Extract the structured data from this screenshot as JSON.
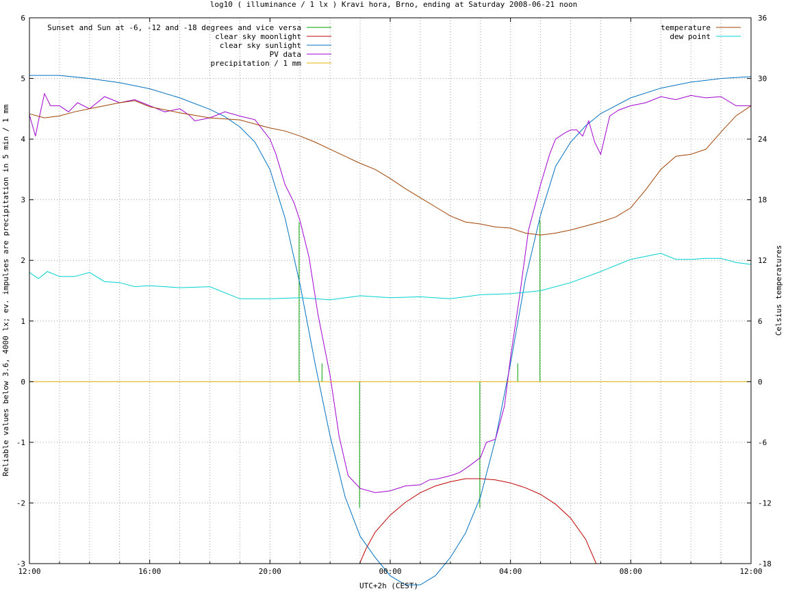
{
  "chart_data": {
    "type": "line",
    "title": "log10 ( illuminance / 1 lx ) Kravi hora, Brno, ending at Saturday 2008-06-21 noon",
    "xlabel": "UTC+2h (CEST)",
    "ylabel": "Reliable values below 3.6, 4000 lx; ev. impulses are precipitation in 5 min / 1 mm",
    "y2label": "Celsius temperatures",
    "xlim": [
      0,
      24
    ],
    "ylim": [
      -3,
      6
    ],
    "y2lim": [
      -18,
      36
    ],
    "x_ticks": [
      {
        "x": 0,
        "label": "12:00"
      },
      {
        "x": 4,
        "label": "16:00"
      },
      {
        "x": 8,
        "label": "20:00"
      },
      {
        "x": 12,
        "label": "00:00"
      },
      {
        "x": 16,
        "label": "04:00"
      },
      {
        "x": 20,
        "label": "08:00"
      },
      {
        "x": 24,
        "label": "12:00"
      }
    ],
    "y_ticks": [
      "-3",
      "-2",
      "-1",
      "0",
      "1",
      "2",
      "3",
      "4",
      "5",
      "6"
    ],
    "y2_ticks": [
      "-18",
      "-12",
      "-6",
      "0",
      "6",
      "12",
      "18",
      "24",
      "30",
      "36"
    ],
    "grid": true,
    "legend_left": "top-left",
    "legend_right": "top-right",
    "series": [
      {
        "name": "Sunset and Sun at -6, -12 and -18 degrees and vice versa",
        "color": "#00a000",
        "axis": "left",
        "kind": "impulse",
        "x": [
          8.97,
          9.73,
          10.98,
          14.98,
          16.24,
          16.98
        ],
        "values": [
          2.63,
          0.3,
          -2.08,
          -2.08,
          0.3,
          2.66
        ]
      },
      {
        "name": "clear sky moonlight",
        "color": "#c00000",
        "axis": "left",
        "x": [
          10.98,
          11.2,
          11.5,
          12.0,
          12.5,
          13.0,
          13.5,
          14.0,
          14.5,
          15.0,
          15.5,
          16.0,
          16.5,
          17.0,
          17.5,
          18.0,
          18.5,
          18.85
        ],
        "values": [
          -3.0,
          -2.75,
          -2.48,
          -2.2,
          -1.99,
          -1.83,
          -1.72,
          -1.65,
          -1.6,
          -1.6,
          -1.62,
          -1.67,
          -1.75,
          -1.86,
          -2.02,
          -2.25,
          -2.6,
          -3.0
        ]
      },
      {
        "name": "clear sky sunlight",
        "color": "#0070c0",
        "axis": "left",
        "x": [
          0,
          1,
          2,
          3,
          4,
          5,
          6,
          6.5,
          7,
          7.5,
          8,
          8.5,
          9,
          9.5,
          10,
          10.5,
          11,
          11.5,
          12,
          12.5,
          13,
          13.5,
          14,
          14.5,
          15,
          15.5,
          16,
          16.5,
          17,
          17.5,
          18,
          18.5,
          19,
          20,
          21,
          22,
          23,
          24
        ],
        "values": [
          5.05,
          5.05,
          5.0,
          4.93,
          4.83,
          4.68,
          4.49,
          4.37,
          4.2,
          3.95,
          3.5,
          2.7,
          1.6,
          0.3,
          -0.9,
          -1.9,
          -2.55,
          -2.9,
          -3.2,
          -3.35,
          -3.35,
          -3.2,
          -2.9,
          -2.5,
          -1.9,
          -0.95,
          0.3,
          1.7,
          2.75,
          3.55,
          3.95,
          4.22,
          4.42,
          4.68,
          4.84,
          4.94,
          5.0,
          5.03
        ]
      },
      {
        "name": "PV data",
        "color": "#a000d0",
        "axis": "left",
        "x": [
          0,
          0.2,
          0.3,
          0.5,
          0.7,
          1,
          1.3,
          1.6,
          2,
          2.5,
          3,
          3.5,
          4,
          4.5,
          5,
          5.3,
          5.5,
          6,
          6.5,
          7,
          7.5,
          8.0,
          8.2,
          8.5,
          8.8,
          9.0,
          9.3,
          9.6,
          10,
          10.3,
          10.6,
          11,
          11.5,
          12,
          12.5,
          13,
          13.3,
          13.6,
          14,
          14.3,
          14.6,
          15,
          15.2,
          15.5,
          15.8,
          16,
          16.3,
          16.6,
          17,
          17.3,
          17.5,
          17.8,
          18,
          18.2,
          18.4,
          18.6,
          18.8,
          19.0,
          19.3,
          19.6,
          20,
          20.5,
          21,
          21.5,
          22,
          22.5,
          23,
          23.5,
          24
        ],
        "values": [
          4.4,
          4.05,
          4.3,
          4.75,
          4.55,
          4.55,
          4.45,
          4.6,
          4.5,
          4.7,
          4.6,
          4.65,
          4.55,
          4.45,
          4.5,
          4.4,
          4.3,
          4.35,
          4.45,
          4.38,
          4.32,
          4.0,
          3.75,
          3.25,
          2.95,
          2.65,
          2.05,
          1.1,
          0.1,
          -0.9,
          -1.55,
          -1.76,
          -1.83,
          -1.8,
          -1.72,
          -1.7,
          -1.62,
          -1.6,
          -1.55,
          -1.5,
          -1.4,
          -1.25,
          -1.0,
          -0.95,
          -0.4,
          0.4,
          1.4,
          2.5,
          3.25,
          3.75,
          4.0,
          4.1,
          4.15,
          4.15,
          4.05,
          4.3,
          3.95,
          3.75,
          4.38,
          4.48,
          4.55,
          4.6,
          4.7,
          4.65,
          4.72,
          4.68,
          4.7,
          4.55,
          4.55
        ]
      },
      {
        "name": "precipitation / 1 mm",
        "color": "#e0b000",
        "axis": "left",
        "x": [
          0,
          24
        ],
        "values": [
          0,
          0
        ]
      },
      {
        "name": "temperature",
        "color": "#a04000",
        "axis": "right",
        "x": [
          0,
          0.5,
          1,
          1.5,
          2,
          2.5,
          3,
          3.5,
          4,
          5,
          6,
          7,
          8,
          8.5,
          9,
          9.5,
          10,
          10.5,
          11,
          11.5,
          12,
          12.5,
          13,
          13.5,
          14,
          14.5,
          15,
          15.5,
          16,
          16.5,
          17,
          17.5,
          18,
          18.5,
          19,
          19.5,
          20,
          20.5,
          21,
          21.5,
          22,
          22.5,
          23,
          23.5,
          24
        ],
        "values": [
          26.5,
          26.1,
          26.3,
          26.7,
          27.0,
          27.3,
          27.6,
          27.8,
          27.2,
          26.6,
          26.1,
          25.9,
          25.1,
          24.8,
          24.3,
          23.7,
          23.0,
          22.3,
          21.6,
          21.0,
          20.1,
          19.1,
          18.2,
          17.3,
          16.4,
          15.8,
          15.6,
          15.3,
          15.2,
          14.7,
          14.5,
          14.7,
          15.0,
          15.4,
          15.8,
          16.3,
          17.2,
          19.0,
          21.0,
          22.3,
          22.5,
          23.0,
          24.7,
          26.3,
          27.3
        ]
      },
      {
        "name": "dew point",
        "color": "#00d0d0",
        "axis": "right",
        "x": [
          0,
          0.3,
          0.6,
          1,
          1.5,
          2,
          2.5,
          3,
          3.5,
          4,
          5,
          6,
          7,
          8,
          9,
          10,
          11,
          12,
          13,
          14,
          15,
          16,
          17,
          18,
          19,
          20,
          21,
          21.5,
          22,
          22.5,
          23,
          23.5,
          24
        ],
        "values": [
          10.8,
          10.2,
          10.9,
          10.4,
          10.4,
          10.8,
          9.9,
          9.8,
          9.4,
          9.5,
          9.3,
          9.4,
          8.2,
          8.2,
          8.3,
          8.1,
          8.5,
          8.3,
          8.4,
          8.2,
          8.6,
          8.7,
          9.0,
          9.8,
          10.9,
          12.1,
          12.7,
          12.1,
          12.1,
          12.2,
          12.2,
          11.8,
          11.6
        ]
      }
    ]
  }
}
